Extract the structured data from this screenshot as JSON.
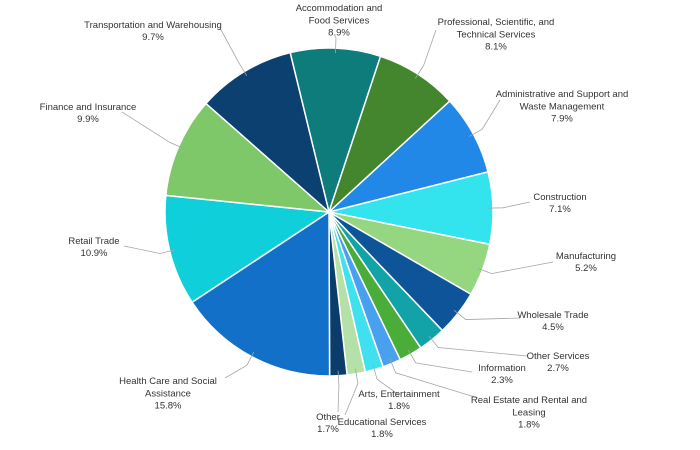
{
  "chart_data": {
    "type": "pie",
    "categories": [
      "Accommodation and Food Services",
      "Professional, Scientific, and Technical Services",
      "Administrative and Support and Waste Management",
      "Construction",
      "Manufacturing",
      "Wholesale Trade",
      "Other Services",
      "Information",
      "Real Estate and Rental and Leasing",
      "Arts, Entertainment",
      "Educational Services",
      "Other",
      "Health Care and Social Assistance",
      "Retail Trade",
      "Finance and Insurance",
      "Transportation and Warehousing"
    ],
    "values": [
      8.9,
      8.1,
      7.9,
      7.1,
      5.2,
      4.5,
      2.7,
      2.3,
      1.8,
      1.8,
      1.8,
      1.7,
      15.8,
      10.9,
      9.9,
      9.7
    ],
    "value_labels": [
      "8.9%",
      "8.1%",
      "7.9%",
      "7.1%",
      "5.2%",
      "4.5%",
      "2.7%",
      "2.3%",
      "1.8%",
      "1.8%",
      "1.8%",
      "1.7%",
      "15.8%",
      "10.9%",
      "9.9%",
      "9.7%"
    ],
    "colors": [
      "#0e7c7b",
      "#43862e",
      "#2288e8",
      "#33e3ee",
      "#95d680",
      "#0e5499",
      "#12a3a8",
      "#4aad3a",
      "#48a0ee",
      "#40e0ee",
      "#b5e0a8",
      "#0b3d6b",
      "#1370c8",
      "#0fd0da",
      "#7ec86a",
      "#0c4070"
    ]
  }
}
